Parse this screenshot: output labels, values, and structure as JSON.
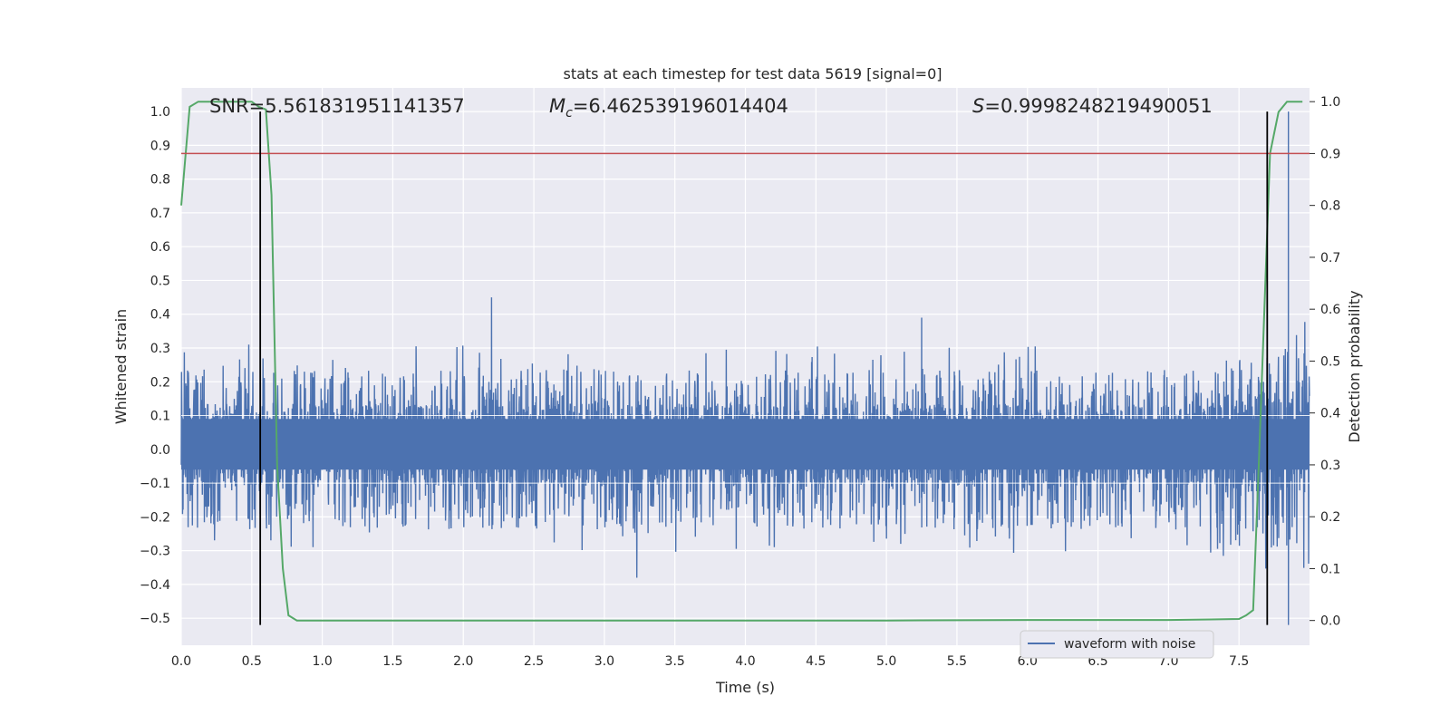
{
  "chart_data": {
    "type": "line",
    "title": "stats at each timestep for test data 5619 [signal=0]",
    "xlabel": "Time (s)",
    "ylabel_left": "Whitened strain",
    "ylabel_right": "Detection probability",
    "xlim": [
      0.0,
      8.0
    ],
    "ylim_left": [
      -0.58,
      1.07
    ],
    "ylim_right": [
      -0.0477,
      1.0265
    ],
    "x_ticks": [
      "0.0",
      "0.5",
      "1.0",
      "1.5",
      "2.0",
      "2.5",
      "3.0",
      "3.5",
      "4.0",
      "4.5",
      "5.0",
      "5.5",
      "6.0",
      "6.5",
      "7.0",
      "7.5"
    ],
    "y_left_ticks": [
      "−0.5",
      "−0.4",
      "−0.3",
      "−0.2",
      "−0.1",
      "0.0",
      "0.1",
      "0.2",
      "0.3",
      "0.4",
      "0.5",
      "0.6",
      "0.7",
      "0.8",
      "0.9",
      "1.0"
    ],
    "y_right_ticks": [
      "0.0",
      "0.1",
      "0.2",
      "0.3",
      "0.4",
      "0.5",
      "0.6",
      "0.7",
      "0.8",
      "0.9",
      "1.0"
    ],
    "grid": true,
    "legend_position": "lower-right",
    "annotations": {
      "snr": "SNR=5.561831951141357",
      "mc_symbol": "M",
      "mc_sub": "c",
      "mc_value": "=6.462539196014404",
      "s_symbol": "S",
      "s_value": "=0.9998248219490051"
    },
    "series": [
      {
        "name": "waveform with noise",
        "axis": "left",
        "color": "#4c72b0",
        "description_values": {
          "core_band": [
            -0.06,
            0.09
          ],
          "typical_peaks": [
            -0.25,
            0.25
          ],
          "notable_peaks": [
            {
              "x": 2.2,
              "y": 0.45
            },
            {
              "x": 3.23,
              "y": -0.38
            },
            {
              "x": 5.25,
              "y": 0.39
            },
            {
              "x": 7.85,
              "y": 1.0
            },
            {
              "x": 7.85,
              "y": -0.52
            }
          ]
        }
      },
      {
        "axis": "right",
        "color": "#55a868",
        "x": [
          0.0,
          0.06,
          0.12,
          0.2,
          0.3,
          0.4,
          0.5,
          0.55,
          0.6,
          0.64,
          0.68,
          0.72,
          0.76,
          0.82,
          1.0,
          2.0,
          3.0,
          4.0,
          5.0,
          6.0,
          7.0,
          7.3,
          7.5,
          7.55,
          7.6,
          7.64,
          7.68,
          7.72,
          7.78,
          7.84,
          7.95
        ],
        "values": [
          0.8,
          0.99,
          1.0,
          1.0,
          1.0,
          1.0,
          1.0,
          0.99,
          0.985,
          0.82,
          0.3,
          0.1,
          0.01,
          0.0,
          0.0,
          0.0,
          0.0,
          0.0,
          0.0,
          0.001,
          0.001,
          0.002,
          0.003,
          0.01,
          0.02,
          0.3,
          0.6,
          0.9,
          0.98,
          1.0,
          1.0
        ]
      },
      {
        "axis": "right",
        "type": "hline",
        "color": "#c44e52",
        "y": 0.9
      },
      {
        "axis": "left",
        "type": "vline",
        "color": "#000000",
        "x": 0.56,
        "y_range": [
          -0.52,
          1.0
        ]
      },
      {
        "axis": "left",
        "type": "vline",
        "color": "#000000",
        "x": 7.7,
        "y_range": [
          -0.52,
          1.0
        ]
      }
    ]
  },
  "colors": {
    "plot_background": "#eaeaf2",
    "grid": "#ffffff",
    "waveform": "#4c72b0",
    "probability": "#55a868",
    "threshold": "#c44e52",
    "marker_lines": "#000000",
    "text": "#262626"
  }
}
